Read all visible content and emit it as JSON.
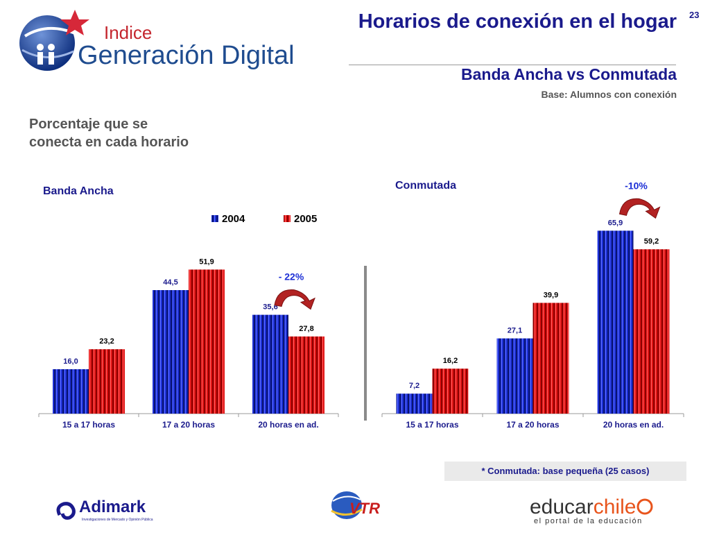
{
  "page_number": "23",
  "logo": {
    "line1": "Indice",
    "line2": "Generación Digital"
  },
  "title": "Horarios de conexión en el hogar",
  "subtitle": "Banda Ancha vs Conmutada",
  "base_text": "Base: Alumnos con conexión",
  "y_description_lines": [
    "Porcentaje que se",
    "conecta en cada horario"
  ],
  "footnote": "* Conmutada: base pequeña (25 casos)",
  "footer": {
    "adimark": "Adimark",
    "adimark_tagline": "Investigaciones de Mercado y Opinión Pública",
    "vtr": "VTR",
    "educar_a": "educar",
    "educar_b": "chile",
    "educar_tagline": "el portal de la educación"
  },
  "colors": {
    "series_2004": "#1c2fd6",
    "series_2005": "#e01414",
    "title": "#1a1a8c",
    "arrow": "#b22222"
  },
  "chart_data": [
    {
      "type": "bar",
      "title": "Banda Ancha",
      "categories": [
        "15 a 17 horas",
        "17 a 20 horas",
        "20 horas en ad."
      ],
      "series": [
        {
          "name": "2004",
          "values": [
            16.0,
            44.5,
            35.6
          ],
          "labels": [
            "16,0",
            "44,5",
            "35,6"
          ]
        },
        {
          "name": "2005",
          "values": [
            23.2,
            51.9,
            27.8
          ],
          "labels": [
            "23,2",
            "51,9",
            "27,8"
          ]
        }
      ],
      "ylim": [
        0,
        72
      ],
      "annotation": {
        "text": "- 22%",
        "category": "20 horas en ad."
      },
      "legend": "top-center",
      "grid": false
    },
    {
      "type": "bar",
      "title": "Conmutada",
      "categories": [
        "15 a 17 horas",
        "17 a 20 horas",
        "20 horas en ad."
      ],
      "series": [
        {
          "name": "2004",
          "values": [
            7.2,
            27.1,
            65.9
          ],
          "labels": [
            "7,2",
            "27,1",
            "65,9"
          ]
        },
        {
          "name": "2005",
          "values": [
            16.2,
            39.9,
            59.2
          ],
          "labels": [
            "16,2",
            "39,9",
            "59,2"
          ]
        }
      ],
      "ylim": [
        0,
        72
      ],
      "annotation": {
        "text": "-10%",
        "category": "20 horas en ad."
      },
      "grid": false
    }
  ]
}
